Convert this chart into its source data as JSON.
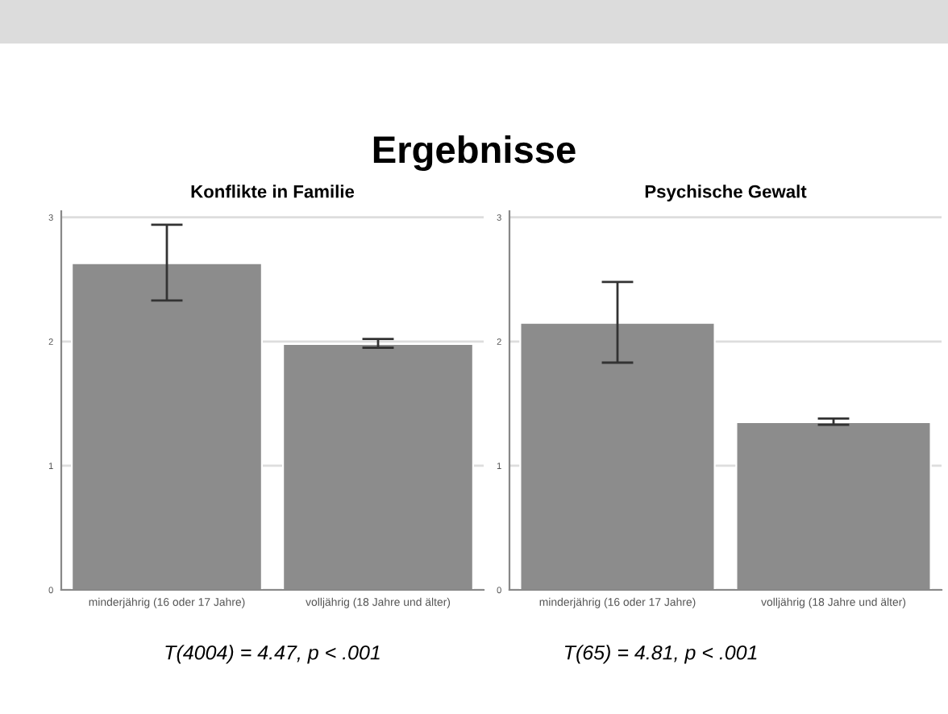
{
  "chart_data": [
    {
      "type": "bar",
      "title": "Konflikte in Familie",
      "categories": [
        "minderjährig (16 oder 17 Jahre)",
        "volljährig (18 Jahre und älter)"
      ],
      "values": [
        2.63,
        1.98
      ],
      "errors": [
        [
          2.33,
          2.94
        ],
        [
          1.95,
          2.02
        ]
      ],
      "color": "#8c8c8c",
      "ylim": [
        0,
        3.05
      ],
      "yticks": [
        0,
        1,
        2,
        3
      ],
      "grid": "y",
      "annotations": [
        "Ergebnisse",
        "T(4004) = 4.47, p < .001"
      ]
    },
    {
      "type": "bar",
      "title": "Psychische Gewalt",
      "categories": [
        "minderjährig (16 oder 17 Jahre)",
        "volljährig (18 Jahre und älter)"
      ],
      "values": [
        2.15,
        1.35
      ],
      "errors": [
        [
          1.83,
          2.48
        ],
        [
          1.33,
          1.38
        ]
      ],
      "color": "#8c8c8c",
      "ylim": [
        0,
        3.05
      ],
      "yticks": [
        0,
        1,
        2,
        3
      ],
      "grid": "y",
      "annotations": [
        "T(65) = 4.81, p < .001"
      ]
    }
  ]
}
